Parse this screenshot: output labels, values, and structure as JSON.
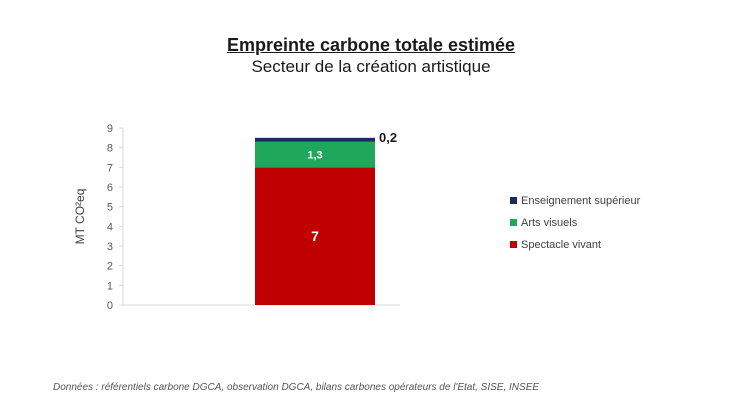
{
  "chart_data": {
    "type": "bar",
    "stacked": true,
    "title": "Empreinte carbone totale estimée",
    "subtitle": "Secteur de la création artistique",
    "ylabel": "MT CO²eq",
    "xlabel": "",
    "ylim": [
      0,
      9
    ],
    "yticks": [
      "0",
      "1",
      "2",
      "3",
      "4",
      "5",
      "6",
      "7",
      "8",
      "9"
    ],
    "categories": [
      ""
    ],
    "series": [
      {
        "name": "Spectacle vivant",
        "values": [
          7
        ],
        "label": "7",
        "color": "#c00000"
      },
      {
        "name": "Arts visuels",
        "values": [
          1.3
        ],
        "label": "1,3",
        "color": "#1fa75c"
      },
      {
        "name": "Enseignement supérieur",
        "values": [
          0.2
        ],
        "label": "0,2",
        "color": "#1f2a5c"
      }
    ],
    "legend": {
      "placement": "right",
      "order": [
        "Enseignement supérieur",
        "Arts visuels",
        "Spectacle vivant"
      ]
    },
    "grid": false
  },
  "source": "Données : référentiels carbone DGCA, observation DGCA, bilans carbones opérateurs de l'Etat, SISE, INSEE"
}
